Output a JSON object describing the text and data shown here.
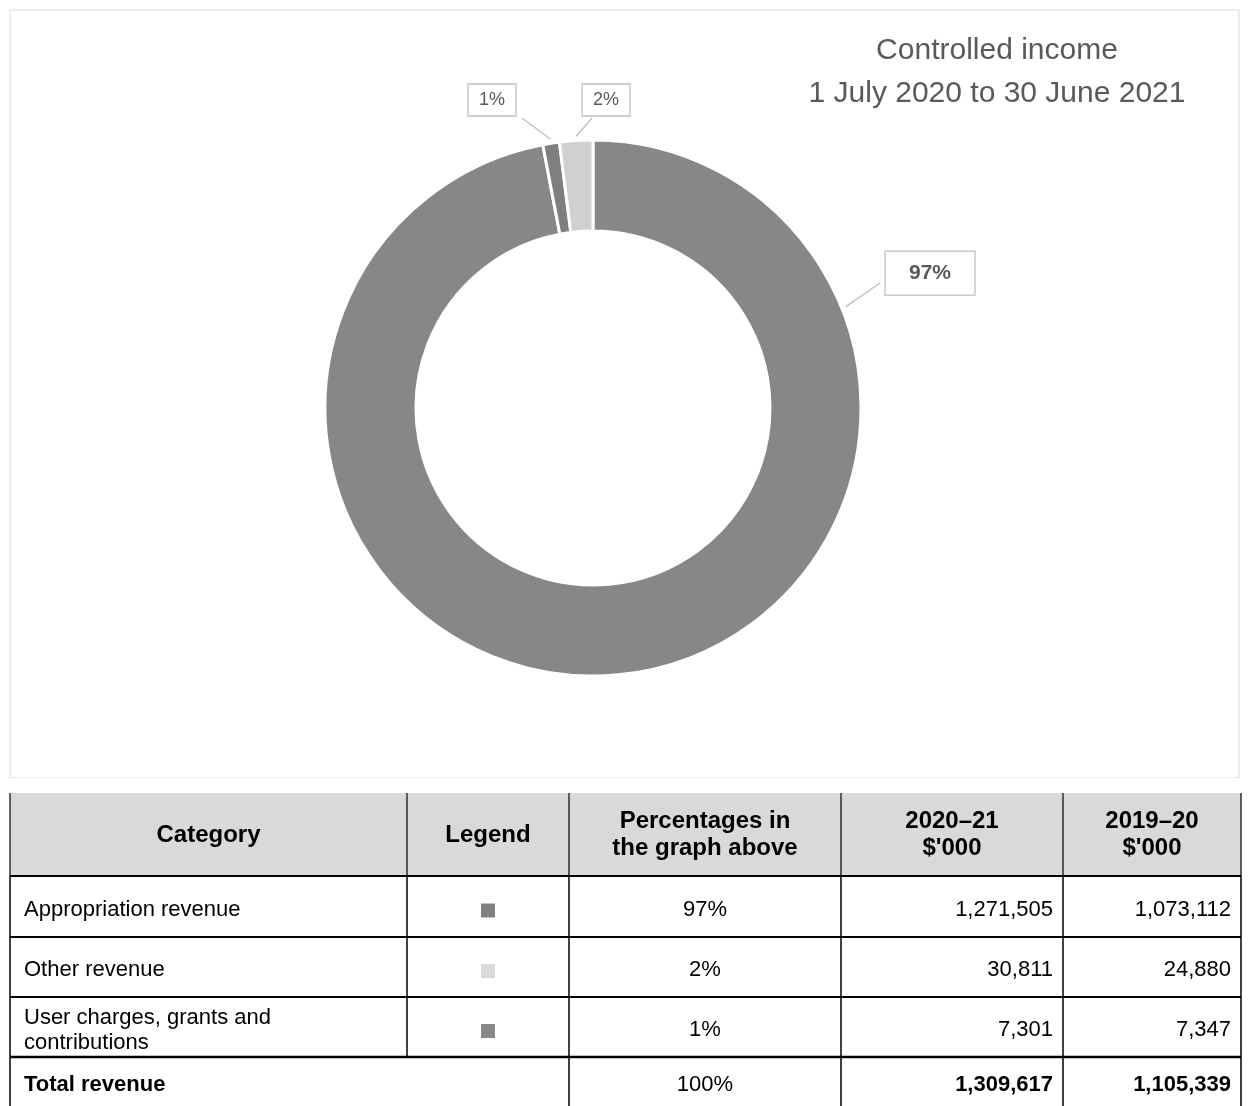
{
  "chart_data": [
    {
      "type": "donut",
      "title": "Controlled income",
      "subtitle": "1 July 2020 to 30 June 2021",
      "values": [
        97,
        1,
        2
      ],
      "colors": [
        "#878787",
        "#7f7f7f",
        "#d0d0d0"
      ],
      "value_labels": [
        "97%",
        "1%",
        "2%"
      ]
    },
    {
      "type": "other",
      "xlabel": "Category",
      "legend_title": "Legend",
      "categories": [
        "Appropriation revenue",
        "Other revenue",
        "User charges, grants and contributions",
        "Total revenue"
      ],
      "annotations": [
        "Percentages in the graph above",
        "2020–21 $'000",
        "2019–20 $'000",
        "97%",
        "1,271,505",
        "1,073,112",
        "2%",
        "30,811",
        "24,880",
        "1%",
        "7,301",
        "7,347",
        "100%",
        "1,309,617",
        "1,105,339"
      ]
    }
  ]
}
